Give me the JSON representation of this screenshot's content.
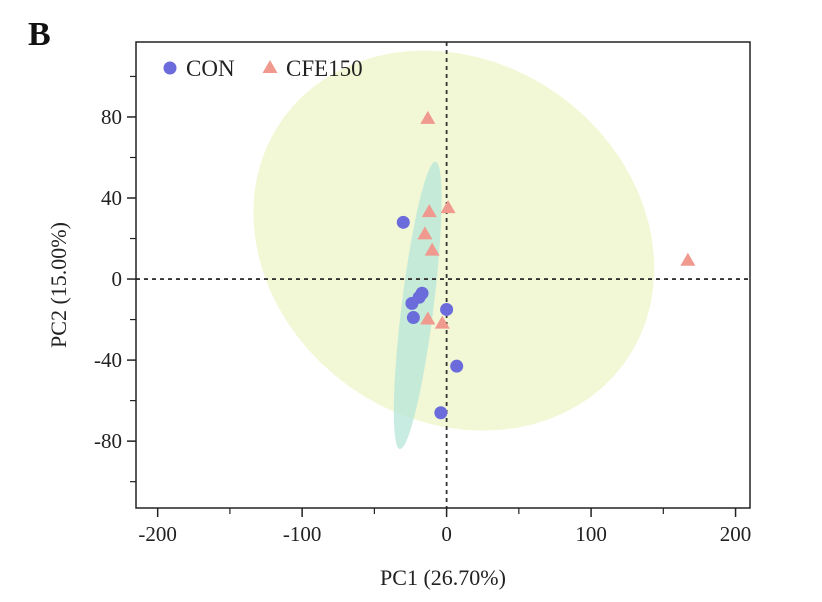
{
  "panel_label": "B",
  "chart_data": {
    "type": "scatter",
    "xlabel": "PC1 (26.70%)",
    "ylabel": "PC2 (15.00%)",
    "xlim": [
      -215,
      210
    ],
    "ylim": [
      -113,
      117
    ],
    "xticks": [
      -200,
      -100,
      0,
      100,
      200
    ],
    "yticks": [
      -80,
      -40,
      0,
      40,
      80
    ],
    "xminor": [
      -150,
      -50,
      50,
      150
    ],
    "yminor": [
      -100,
      -60,
      -20,
      20,
      60,
      100
    ],
    "reference_lines": {
      "x": 0,
      "y": 0
    },
    "legend": {
      "position": "top-left"
    },
    "series": [
      {
        "name": "CON",
        "marker": "circle",
        "color": "#6b6bdc",
        "points": [
          [
            -30,
            28
          ],
          [
            -17,
            -7
          ],
          [
            -19,
            -9
          ],
          [
            -24,
            -12
          ],
          [
            -23,
            -19
          ],
          [
            0,
            -15
          ],
          [
            7,
            -43
          ],
          [
            -4,
            -66
          ]
        ],
        "ellipse": {
          "center": [
            -20,
            -13
          ],
          "semi_major": 72,
          "semi_minor": 11,
          "angle_deg": 80,
          "color": "#b5e6d8"
        }
      },
      {
        "name": "CFE150",
        "marker": "triangle",
        "color": "#f0998e",
        "points": [
          [
            -13,
            79
          ],
          [
            -12,
            33
          ],
          [
            1,
            35
          ],
          [
            -15,
            22
          ],
          [
            -10,
            14
          ],
          [
            167,
            9
          ],
          [
            -13,
            -20
          ],
          [
            -3,
            -22
          ]
        ],
        "ellipse": {
          "center": [
            5,
            19
          ],
          "semi_major": 140,
          "semi_minor": 92,
          "angle_deg": -10,
          "color": "#eef5c8"
        }
      }
    ]
  }
}
